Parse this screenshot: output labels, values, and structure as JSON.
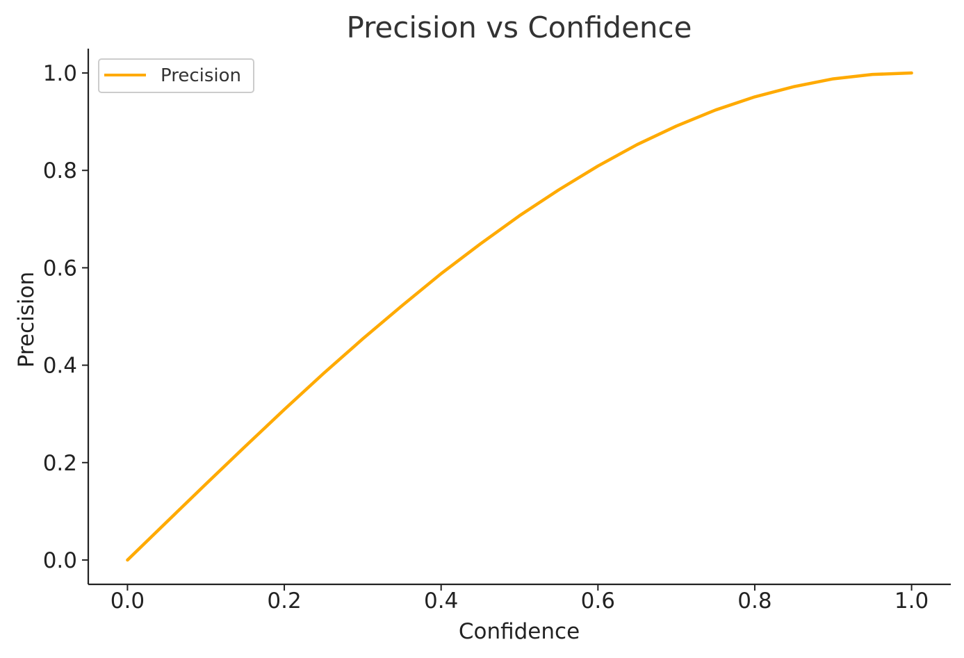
{
  "chart_data": {
    "type": "line",
    "title": "Precision vs Confidence",
    "xlabel": "Confidence",
    "ylabel": "Precision",
    "xlim": [
      -0.05,
      1.05
    ],
    "ylim": [
      -0.05,
      1.05
    ],
    "xticks": [
      "0.0",
      "0.2",
      "0.4",
      "0.6",
      "0.8",
      "1.0"
    ],
    "yticks": [
      "0.0",
      "0.2",
      "0.4",
      "0.6",
      "0.8",
      "1.0"
    ],
    "grid": false,
    "legend_position": "top-left",
    "series": [
      {
        "name": "Precision",
        "color": "#FFAA00",
        "x": [
          0.0,
          0.05,
          0.1,
          0.15,
          0.2,
          0.25,
          0.3,
          0.35,
          0.4,
          0.45,
          0.5,
          0.55,
          0.6,
          0.65,
          0.7,
          0.75,
          0.8,
          0.85,
          0.9,
          0.95,
          1.0
        ],
        "y": [
          0.0,
          0.078,
          0.156,
          0.233,
          0.309,
          0.383,
          0.454,
          0.522,
          0.588,
          0.649,
          0.707,
          0.76,
          0.809,
          0.853,
          0.891,
          0.924,
          0.951,
          0.972,
          0.988,
          0.997,
          1.0
        ]
      }
    ]
  }
}
